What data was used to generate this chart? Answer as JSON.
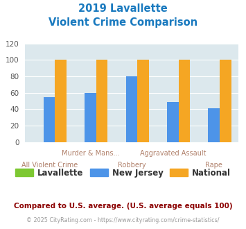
{
  "title_line1": "2019 Lavallette",
  "title_line2": "Violent Crime Comparison",
  "categories": [
    "All Violent Crime",
    "Murder & Mans...",
    "Robbery",
    "Aggravated Assault",
    "Rape"
  ],
  "series": {
    "Lavallette": [
      0,
      0,
      0,
      0,
      0
    ],
    "New Jersey": [
      55,
      60,
      80,
      49,
      41
    ],
    "National": [
      100,
      100,
      100,
      100,
      100
    ]
  },
  "colors": {
    "Lavallette": "#7dc832",
    "New Jersey": "#4d94e8",
    "National": "#f5a623"
  },
  "ylim": [
    0,
    120
  ],
  "yticks": [
    0,
    20,
    40,
    60,
    80,
    100,
    120
  ],
  "bar_width": 0.28,
  "background_color": "#dce8ed",
  "title_color": "#1a7abf",
  "footer_text1": "Compared to U.S. average. (U.S. average equals 100)",
  "footer_text2": "© 2025 CityRating.com - https://www.cityrating.com/crime-statistics/",
  "footer_color1": "#8b0000",
  "footer_color2": "#999999",
  "top_labels": [
    "",
    "Murder & Mans...",
    "",
    "Aggravated Assault",
    ""
  ],
  "bot_labels": [
    "All Violent Crime",
    "",
    "Robbery",
    "",
    "Rape"
  ],
  "label_color": "#b0806a"
}
